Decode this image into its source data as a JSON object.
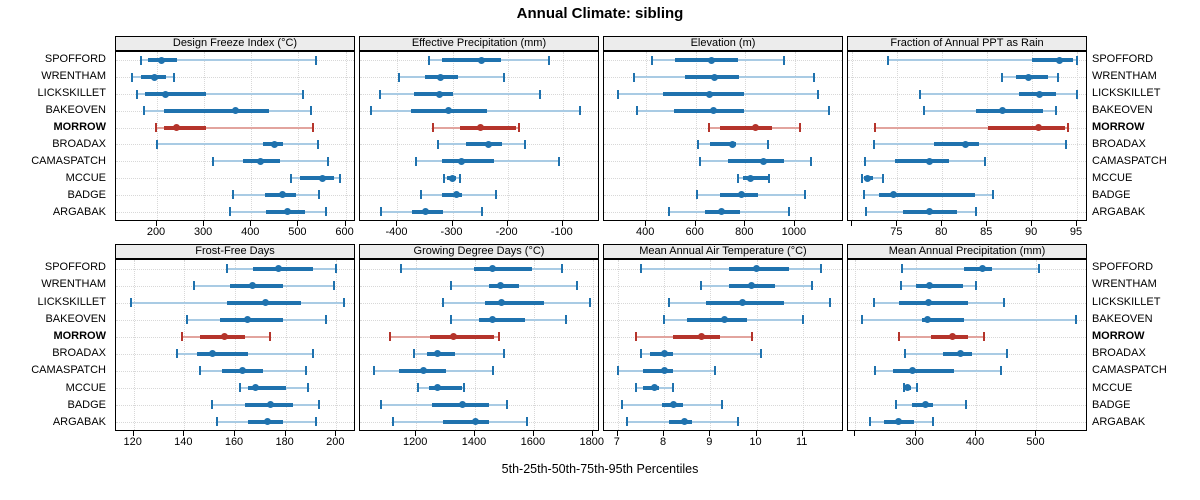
{
  "title": "Annual Climate: sibling",
  "caption": "5th-25th-50th-75th-95th Percentiles",
  "stations": [
    "SPOFFORD",
    "WRENTHAM",
    "LICKSKILLET",
    "BAKEOVEN",
    "MORROW",
    "BROADAX",
    "CAMASPATCH",
    "MCCUE",
    "BADGE",
    "ARGABAK"
  ],
  "highlight_station": "MORROW",
  "colors": {
    "blue": "#1f72ae",
    "blue_light": "#a9cbe4",
    "red": "#b5342b",
    "red_light": "#e2a49e",
    "grid": "#d8d8d8",
    "strip_bg": "#ececec",
    "border": "#000000"
  },
  "chart_data": {
    "type": "scatter",
    "subtype": "percentile-dotplot-trellis",
    "percentiles": [
      5,
      25,
      50,
      75,
      95
    ],
    "legend_note": "thin line = 5th-95th, thick line = 25th-75th, dot = 50th",
    "layout": {
      "rows": 2,
      "cols": 4,
      "grid": "dotted",
      "highlight": "MORROW"
    },
    "stations": [
      "SPOFFORD",
      "WRENTHAM",
      "LICKSKILLET",
      "BAKEOVEN",
      "MORROW",
      "BROADAX",
      "CAMASPATCH",
      "MCCUE",
      "BADGE",
      "ARGABAK"
    ],
    "panels": [
      {
        "title": "Design Freeze Index (°C)",
        "row": 0,
        "col": 0,
        "xlim": [
          113,
          618
        ],
        "ticks": [
          200,
          300,
          400,
          500,
          600
        ],
        "tick_labels": [
          "200",
          "300",
          "400",
          "500",
          "600"
        ],
        "values": [
          [
            167,
            181,
            210,
            243,
            537
          ],
          [
            148,
            167,
            195,
            219,
            236
          ],
          [
            157,
            174,
            219,
            303,
            510
          ],
          [
            172,
            214,
            367,
            438,
            527
          ],
          [
            198,
            215,
            241,
            303,
            532
          ],
          [
            201,
            424,
            450,
            467,
            541
          ],
          [
            319,
            383,
            419,
            460,
            563
          ],
          [
            484,
            503,
            552,
            576,
            589
          ],
          [
            362,
            429,
            466,
            494,
            543
          ],
          [
            355,
            432,
            477,
            515,
            558
          ]
        ]
      },
      {
        "title": "Effective Precipitation (mm)",
        "row": 0,
        "col": 1,
        "xlim": [
          -468,
          -36
        ],
        "ticks": [
          -400,
          -300,
          -200,
          -100
        ],
        "tick_labels": [
          "-400",
          "-300",
          "-200",
          "-100"
        ],
        "values": [
          [
            -343,
            -320,
            -248,
            -212,
            -125
          ],
          [
            -398,
            -350,
            -322,
            -291,
            -206
          ],
          [
            -432,
            -370,
            -324,
            -300,
            -141
          ],
          [
            -448,
            -376,
            -308,
            -238,
            -68
          ],
          [
            -335,
            -287,
            -249,
            -185,
            -180
          ],
          [
            -326,
            -276,
            -234,
            -211,
            -169
          ],
          [
            -366,
            -320,
            -284,
            -225,
            -107
          ],
          [
            -316,
            -310,
            -301,
            -294,
            -287
          ],
          [
            -357,
            -320,
            -292,
            -282,
            -221
          ],
          [
            -430,
            -373,
            -349,
            -317,
            -246
          ]
        ]
      },
      {
        "title": "Elevation (m)",
        "row": 0,
        "col": 2,
        "xlim": [
          230,
          1190
        ],
        "ticks": [
          400,
          600,
          800,
          1000
        ],
        "tick_labels": [
          "400",
          "600",
          "800",
          "1000"
        ],
        "values": [
          [
            423,
            516,
            663,
            769,
            956
          ],
          [
            352,
            556,
            676,
            773,
            1076
          ],
          [
            285,
            469,
            656,
            796,
            1093
          ],
          [
            363,
            512,
            672,
            796,
            1136
          ],
          [
            652,
            696,
            843,
            909,
            1019
          ],
          [
            609,
            656,
            747,
            763,
            893
          ],
          [
            619,
            729,
            873,
            956,
            1063
          ],
          [
            770,
            790,
            820,
            890,
            895
          ],
          [
            605,
            699,
            783,
            853,
            1040
          ],
          [
            493,
            639,
            703,
            779,
            976
          ]
        ]
      },
      {
        "title": "Fraction of Annual PPT as Rain",
        "row": 0,
        "col": 3,
        "xlim": [
          69.5,
          96
        ],
        "ticks": [
          70,
          75,
          80,
          85,
          90,
          95
        ],
        "tick_labels": [
          "",
          "75",
          "80",
          "85",
          "90",
          "95"
        ],
        "values": [
          [
            74,
            90,
            93,
            94.6,
            95
          ],
          [
            86.7,
            88.2,
            89.6,
            91.8,
            92.9
          ],
          [
            77.5,
            88.5,
            90.8,
            92.7,
            95
          ],
          [
            78,
            83.8,
            86.7,
            91.2,
            92.7
          ],
          [
            72.5,
            85.1,
            90.7,
            93.7,
            94
          ],
          [
            72.4,
            79.1,
            82.6,
            84.1,
            93.8
          ],
          [
            71.4,
            74.7,
            78.6,
            80.8,
            84.8
          ],
          [
            71.1,
            71.3,
            71.7,
            72.3,
            73.4
          ],
          [
            71.3,
            73,
            74.6,
            83.6,
            85.7
          ],
          [
            71.5,
            75.6,
            78.6,
            81.6,
            83.7
          ]
        ]
      },
      {
        "title": "Frost-Free Days",
        "row": 1,
        "col": 0,
        "xlim": [
          113,
          207
        ],
        "ticks": [
          120,
          140,
          160,
          180,
          200
        ],
        "tick_labels": [
          "120",
          "140",
          "160",
          "180",
          "200"
        ],
        "values": [
          [
            157,
            167,
            177,
            191,
            200
          ],
          [
            144,
            158,
            167,
            179,
            199
          ],
          [
            119,
            157,
            172,
            186,
            203
          ],
          [
            141,
            154,
            165,
            179,
            196
          ],
          [
            139,
            146,
            156,
            164,
            174
          ],
          [
            137,
            145,
            151,
            165,
            191
          ],
          [
            146,
            155,
            163,
            171,
            188
          ],
          [
            162,
            165,
            168,
            180,
            189
          ],
          [
            151,
            164,
            174,
            183,
            193
          ],
          [
            153,
            165,
            173,
            179,
            192
          ]
        ]
      },
      {
        "title": "Growing Degree Days (°C)",
        "row": 1,
        "col": 1,
        "xlim": [
          1009,
          1818
        ],
        "ticks": [
          1200,
          1400,
          1600,
          1800
        ],
        "tick_labels": [
          "1200",
          "1400",
          "1600",
          "1800"
        ],
        "values": [
          [
            1150,
            1395,
            1460,
            1595,
            1697
          ],
          [
            1320,
            1448,
            1485,
            1550,
            1745
          ],
          [
            1290,
            1435,
            1490,
            1635,
            1790
          ],
          [
            1318,
            1414,
            1460,
            1570,
            1710
          ],
          [
            1110,
            1246,
            1326,
            1465,
            1480
          ],
          [
            1192,
            1238,
            1272,
            1331,
            1500
          ],
          [
            1055,
            1143,
            1226,
            1303,
            1460
          ],
          [
            1206,
            1242,
            1274,
            1356,
            1362
          ],
          [
            1082,
            1254,
            1357,
            1448,
            1510
          ],
          [
            1120,
            1290,
            1400,
            1448,
            1577
          ]
        ]
      },
      {
        "title": "Mean Annual Air Temperature (°C)",
        "row": 1,
        "col": 2,
        "xlim": [
          6.7,
          11.85
        ],
        "ticks": [
          7,
          8,
          9,
          10,
          11
        ],
        "tick_labels": [
          "7",
          "8",
          "9",
          "10",
          "11"
        ],
        "values": [
          [
            7.5,
            9.4,
            10.0,
            10.7,
            11.4
          ],
          [
            8.8,
            9.4,
            9.9,
            10.4,
            11.2
          ],
          [
            8.1,
            8.9,
            9.7,
            10.6,
            11.6
          ],
          [
            8.0,
            8.5,
            9.3,
            9.8,
            11.0
          ],
          [
            7.4,
            8.2,
            8.8,
            9.2,
            9.9
          ],
          [
            7.5,
            7.7,
            8.0,
            8.2,
            10.1
          ],
          [
            7.0,
            7.55,
            8.0,
            8.2,
            9.1
          ],
          [
            7.4,
            7.55,
            7.8,
            7.9,
            8.2
          ],
          [
            7.1,
            7.95,
            8.2,
            8.4,
            9.25
          ],
          [
            7.2,
            8.1,
            8.45,
            8.6,
            9.6
          ]
        ]
      },
      {
        "title": "Mean Annual Precipitation (mm)",
        "row": 1,
        "col": 3,
        "xlim": [
          188,
          582
        ],
        "ticks": [
          200,
          300,
          400,
          500
        ],
        "tick_labels": [
          "",
          "300",
          "400",
          "500"
        ],
        "values": [
          [
            278,
            380,
            410,
            426,
            505
          ],
          [
            276,
            300,
            323,
            379,
            400
          ],
          [
            231,
            273,
            322,
            387,
            446
          ],
          [
            211,
            311,
            320,
            380,
            565
          ],
          [
            273,
            326,
            361,
            386,
            413
          ],
          [
            282,
            346,
            374,
            393,
            452
          ],
          [
            232,
            262,
            294,
            363,
            442
          ],
          [
            280,
            282,
            286,
            292,
            303
          ],
          [
            268,
            294,
            316,
            329,
            383
          ],
          [
            224,
            247,
            272,
            298,
            329
          ]
        ]
      }
    ]
  }
}
